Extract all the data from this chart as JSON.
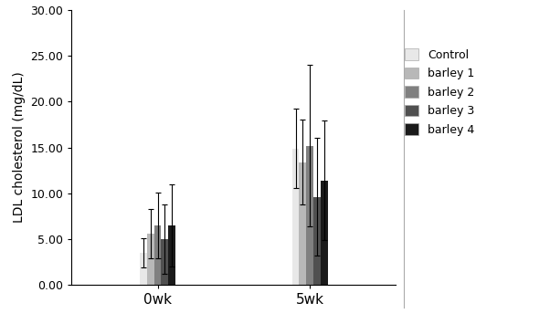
{
  "groups": [
    "0wk",
    "5wk"
  ],
  "series": [
    "Control",
    "barley 1",
    "barley 2",
    "barley 3",
    "barley 4"
  ],
  "values": [
    [
      3.5,
      5.6,
      6.5,
      5.0,
      6.5
    ],
    [
      14.9,
      13.4,
      15.2,
      9.6,
      11.4
    ]
  ],
  "errors": [
    [
      1.6,
      2.7,
      3.6,
      3.8,
      4.5
    ],
    [
      4.3,
      4.6,
      8.8,
      6.4,
      6.5
    ]
  ],
  "colors": [
    "#e8e8e8",
    "#b8b8b8",
    "#808080",
    "#505050",
    "#1a1a1a"
  ],
  "ylabel": "LDL cholesterol (mg/dL)",
  "ylim": [
    0,
    30
  ],
  "yticks": [
    0.0,
    5.0,
    10.0,
    15.0,
    20.0,
    25.0,
    30.0
  ],
  "bar_width": 0.07,
  "group_centers": [
    1.0,
    2.5
  ],
  "figsize": [
    6.02,
    3.55
  ],
  "dpi": 100,
  "legend_labels": [
    "Control",
    "barley 1",
    "barley 2",
    "barley 3",
    "barley 4"
  ],
  "xlabel_fontsize": 11,
  "ylabel_fontsize": 10,
  "ytick_fontsize": 9
}
